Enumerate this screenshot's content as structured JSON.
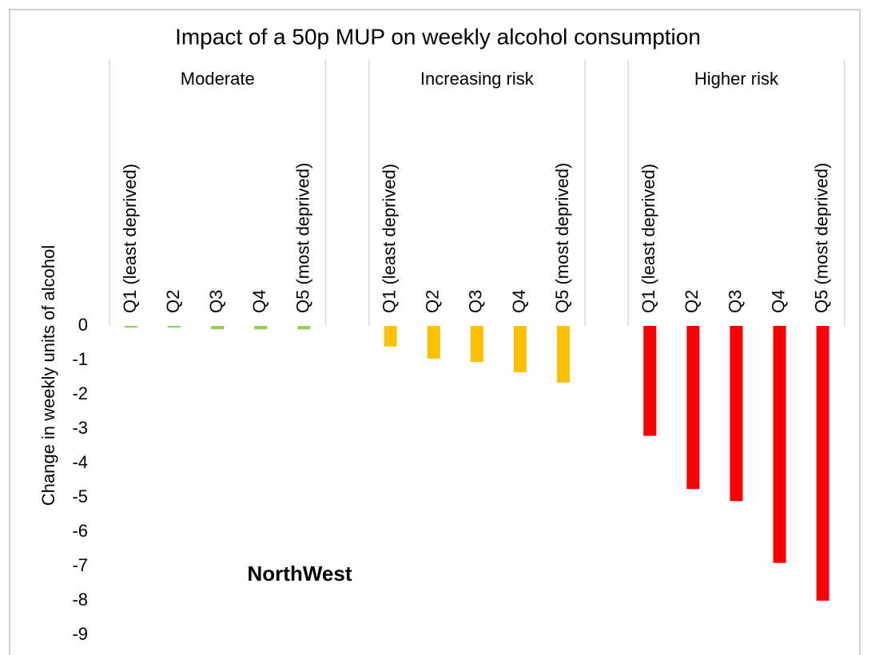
{
  "chart_data": {
    "type": "bar",
    "title": "Impact of a 50p MUP on weekly alcohol consumption",
    "y_label": "Change in weekly units of alcohol",
    "annotation": "NorthWest",
    "categories": [
      "Q1  (least deprived)",
      "Q2",
      "Q3",
      "Q4",
      "Q5  (most deprived)"
    ],
    "series": [
      {
        "name": "Moderate",
        "color": "#92d050",
        "values": [
          -0.05,
          -0.05,
          -0.1,
          -0.1,
          -0.1
        ]
      },
      {
        "name": "Increasing risk",
        "color": "#ffc000",
        "values": [
          -0.6,
          -0.95,
          -1.05,
          -1.35,
          -1.65
        ]
      },
      {
        "name": "Higher risk",
        "color": "#ff0000",
        "values": [
          -3.2,
          -4.75,
          -5.1,
          -6.9,
          -8.0
        ]
      }
    ],
    "ylim": [
      -9,
      0
    ],
    "yticks": [
      0,
      -1,
      -2,
      -3,
      -4,
      -5,
      -6,
      -7,
      -8,
      -9
    ]
  }
}
